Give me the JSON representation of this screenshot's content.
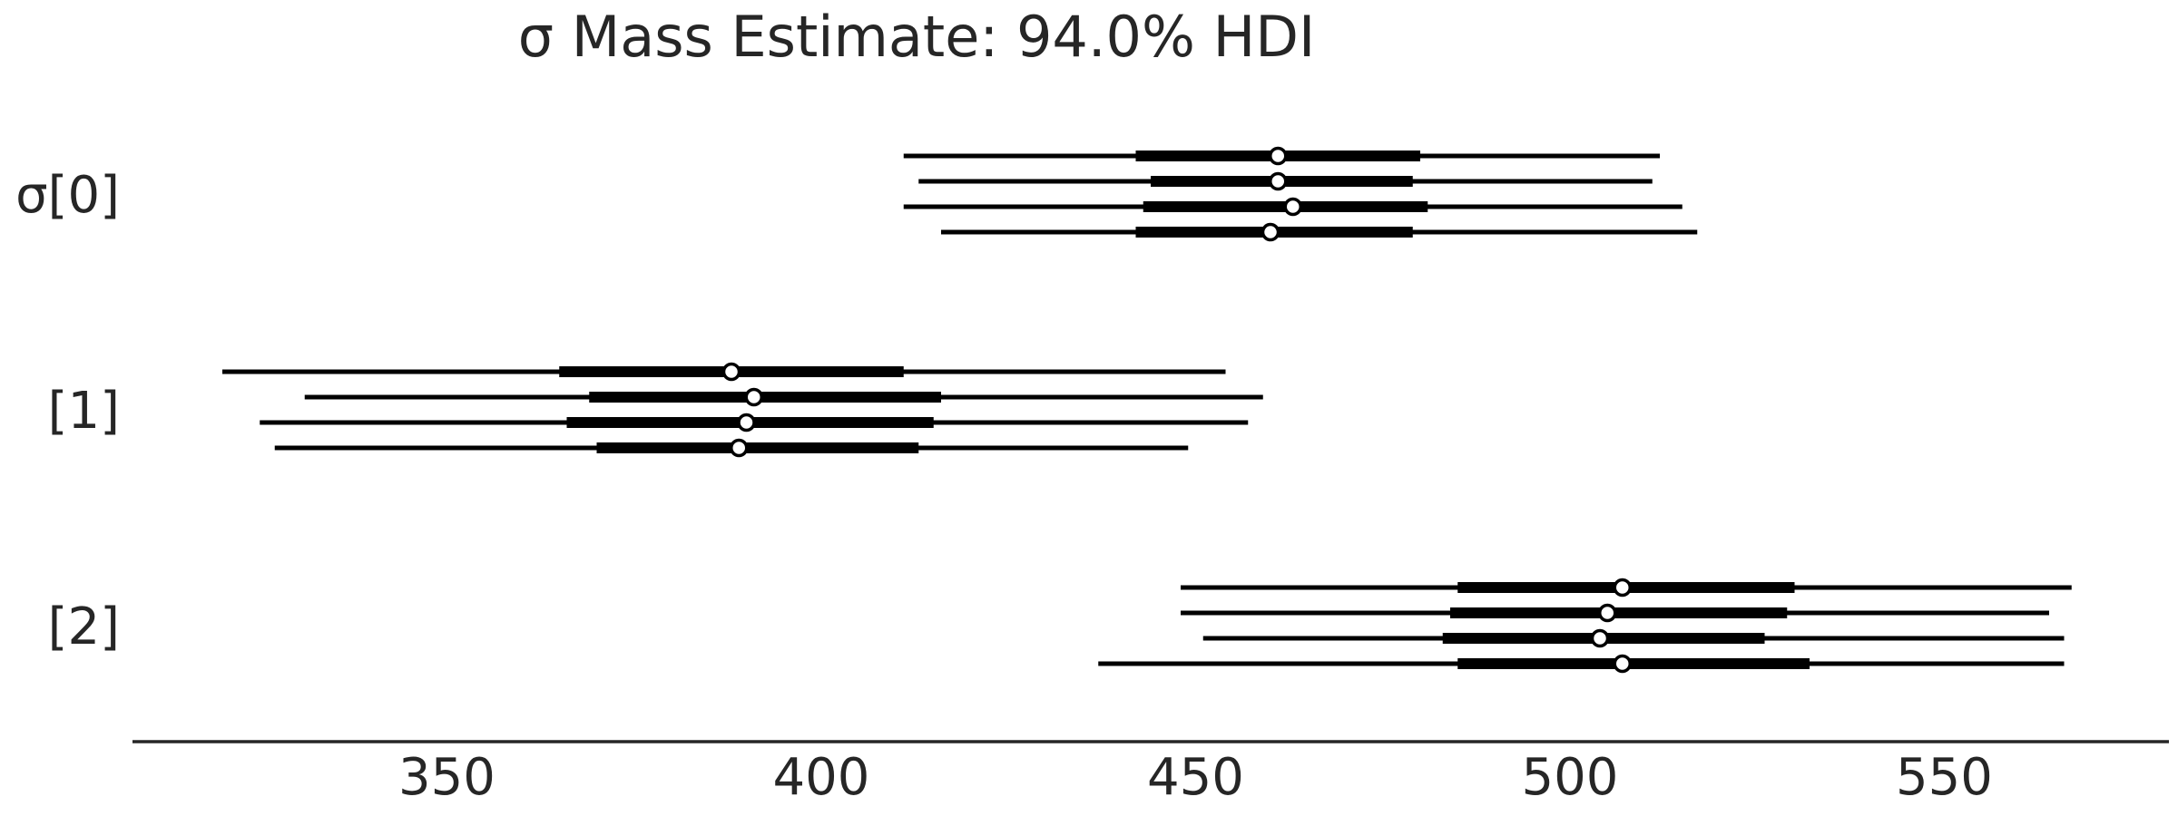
{
  "chart_data": {
    "type": "forest",
    "title": "σ Mass Estimate: 94.0% HDI",
    "xlim": [
      308,
      580
    ],
    "xticks": [
      350,
      400,
      450,
      500,
      550
    ],
    "grid": false,
    "legend": "none",
    "groups": [
      {
        "label": "σ[0]",
        "chains": [
          {
            "hdi_low": 411,
            "q_low": 442,
            "median": 461,
            "q_high": 480,
            "hdi_high": 512
          },
          {
            "hdi_low": 413,
            "q_low": 444,
            "median": 461,
            "q_high": 479,
            "hdi_high": 511
          },
          {
            "hdi_low": 411,
            "q_low": 443,
            "median": 463,
            "q_high": 481,
            "hdi_high": 515
          },
          {
            "hdi_low": 416,
            "q_low": 442,
            "median": 460,
            "q_high": 479,
            "hdi_high": 517
          }
        ]
      },
      {
        "label": "[1]",
        "chains": [
          {
            "hdi_low": 320,
            "q_low": 365,
            "median": 388,
            "q_high": 411,
            "hdi_high": 454
          },
          {
            "hdi_low": 331,
            "q_low": 369,
            "median": 391,
            "q_high": 416,
            "hdi_high": 459
          },
          {
            "hdi_low": 325,
            "q_low": 366,
            "median": 390,
            "q_high": 415,
            "hdi_high": 457
          },
          {
            "hdi_low": 327,
            "q_low": 370,
            "median": 389,
            "q_high": 413,
            "hdi_high": 449
          }
        ]
      },
      {
        "label": "[2]",
        "chains": [
          {
            "hdi_low": 448,
            "q_low": 485,
            "median": 507,
            "q_high": 530,
            "hdi_high": 567
          },
          {
            "hdi_low": 448,
            "q_low": 484,
            "median": 505,
            "q_high": 529,
            "hdi_high": 564
          },
          {
            "hdi_low": 451,
            "q_low": 483,
            "median": 504,
            "q_high": 526,
            "hdi_high": 566
          },
          {
            "hdi_low": 437,
            "q_low": 485,
            "median": 507,
            "q_high": 532,
            "hdi_high": 566
          }
        ]
      }
    ]
  }
}
